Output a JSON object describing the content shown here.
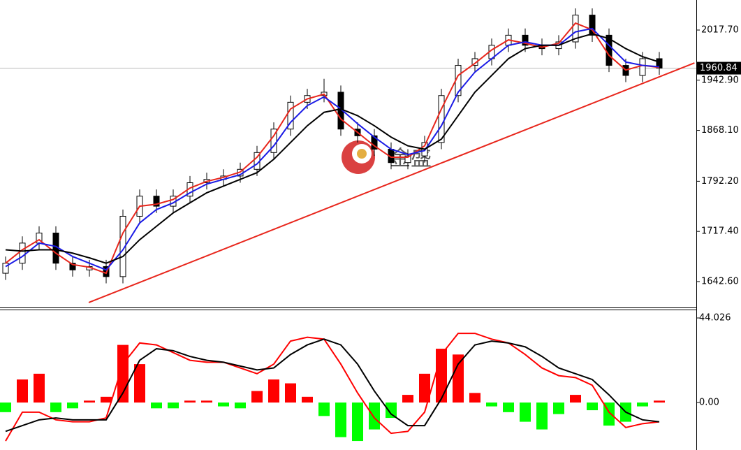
{
  "chart_data": [
    {
      "type": "candlestick",
      "open": [
        1655,
        1670,
        1700,
        1715,
        1670,
        1660,
        1665,
        1650,
        1740,
        1770,
        1755,
        1770,
        1790,
        1795,
        1800,
        1810,
        1835,
        1870,
        1910,
        1920,
        1925,
        1870,
        1860,
        1840,
        1820,
        1830,
        1850,
        1920,
        1965,
        1975,
        1995,
        2010,
        1995,
        1990,
        2000,
        2040,
        2010,
        1965,
        1950,
        1975
      ],
      "high": [
        1680,
        1710,
        1725,
        1725,
        1680,
        1675,
        1675,
        1750,
        1780,
        1780,
        1780,
        1800,
        1805,
        1810,
        1820,
        1845,
        1880,
        1920,
        1930,
        1945,
        1935,
        1880,
        1870,
        1850,
        1840,
        1860,
        1930,
        1975,
        1985,
        2005,
        2020,
        2020,
        2005,
        2010,
        2050,
        2050,
        2020,
        1975,
        1985,
        1985
      ],
      "low": [
        1645,
        1660,
        1690,
        1660,
        1650,
        1650,
        1640,
        1640,
        1730,
        1745,
        1745,
        1760,
        1780,
        1785,
        1790,
        1800,
        1825,
        1860,
        1900,
        1910,
        1860,
        1850,
        1830,
        1810,
        1810,
        1820,
        1840,
        1910,
        1955,
        1965,
        1985,
        1985,
        1980,
        1980,
        1990,
        2000,
        1955,
        1940,
        1940,
        1951
      ],
      "close": [
        1670,
        1700,
        1715,
        1670,
        1660,
        1665,
        1650,
        1740,
        1770,
        1755,
        1770,
        1790,
        1795,
        1800,
        1810,
        1835,
        1870,
        1910,
        1920,
        1925,
        1870,
        1860,
        1840,
        1820,
        1830,
        1850,
        1920,
        1965,
        1975,
        1995,
        2010,
        1995,
        1990,
        2000,
        2040,
        2010,
        1965,
        1950,
        1975,
        1960.84
      ],
      "series": [
        {
          "color": "#e8261c",
          "values": [
            1670,
            1690,
            1705,
            1685,
            1668,
            1664,
            1655,
            1715,
            1755,
            1758,
            1765,
            1782,
            1792,
            1798,
            1806,
            1828,
            1860,
            1900,
            1915,
            1922,
            1885,
            1865,
            1845,
            1828,
            1828,
            1845,
            1900,
            1950,
            1968,
            1988,
            2003,
            1998,
            1992,
            1998,
            2028,
            2018,
            1980,
            1958,
            1965,
            1962
          ]
        },
        {
          "color": "#1a1ae6",
          "values": [
            1665,
            1680,
            1700,
            1695,
            1680,
            1670,
            1660,
            1690,
            1730,
            1750,
            1760,
            1775,
            1788,
            1795,
            1802,
            1818,
            1845,
            1880,
            1905,
            1918,
            1900,
            1878,
            1858,
            1840,
            1832,
            1838,
            1875,
            1925,
            1955,
            1975,
            1995,
            2000,
            1995,
            1995,
            2015,
            2020,
            1995,
            1970,
            1965,
            1963
          ]
        },
        {
          "color": "#000000",
          "values": [
            1690,
            1688,
            1690,
            1690,
            1685,
            1678,
            1670,
            1680,
            1705,
            1725,
            1745,
            1760,
            1775,
            1785,
            1795,
            1805,
            1825,
            1850,
            1875,
            1895,
            1900,
            1890,
            1875,
            1858,
            1845,
            1840,
            1855,
            1890,
            1925,
            1950,
            1975,
            1990,
            1995,
            1995,
            2005,
            2012,
            2005,
            1990,
            1978,
            1970
          ]
        }
      ],
      "ylim": [
        1604.0,
        2062.5
      ],
      "yticks": [
        {
          "value": 1642.6,
          "label": "1642.60"
        },
        {
          "value": 1717.4,
          "label": "1717.40"
        },
        {
          "value": 1792.2,
          "label": "1792.20"
        },
        {
          "value": 1868.1,
          "label": "1868.10"
        },
        {
          "value": 1942.9,
          "label": "1942.90"
        },
        {
          "value": 2017.7,
          "label": "2017.70"
        }
      ],
      "current_price": 1960.84,
      "trendline": {
        "start": [
          4.96,
          1611.3
        ],
        "end": [
          41.1,
          1968.7
        ],
        "color": "#e8261c"
      },
      "watermark": "金盛"
    },
    {
      "type": "macd",
      "histogram": {
        "values": [
          -5,
          12,
          15,
          -5,
          -3,
          1,
          3,
          30,
          20,
          -3,
          -3,
          1,
          1,
          -2,
          -3,
          6,
          12,
          10,
          3,
          -7,
          -18,
          -20,
          -14,
          -8,
          4,
          15,
          28,
          25,
          5,
          -2,
          -5,
          -10,
          -14,
          -6,
          4,
          -4,
          -12,
          -10,
          -2,
          1
        ],
        "up_color": "#ff0000",
        "down_color": "#00ff00"
      },
      "series": [
        {
          "color": "#ff0000",
          "values": [
            -20,
            -5,
            -5,
            -9,
            -10,
            -10,
            -8,
            20,
            31,
            30,
            26,
            22,
            21,
            21,
            18,
            15,
            20,
            32,
            34,
            33,
            20,
            5,
            -8,
            -16,
            -15,
            -5,
            25,
            36,
            36,
            33,
            31,
            25,
            18,
            14,
            13,
            9,
            -5,
            -13,
            -11,
            -10
          ]
        },
        {
          "color": "#000000",
          "values": [
            -15,
            -12,
            -9,
            -8,
            -9,
            -9,
            -9,
            5,
            22,
            28,
            27,
            24,
            22,
            21,
            19,
            17,
            18,
            25,
            30,
            33,
            30,
            20,
            6,
            -6,
            -12,
            -12,
            2,
            20,
            30,
            32,
            31,
            29,
            24,
            18,
            15,
            12,
            4,
            -5,
            -9,
            -10
          ]
        }
      ],
      "ylim": [
        -24.7,
        48.4
      ],
      "yticks": [
        {
          "value": 0,
          "label": "0.00"
        },
        44.026
      ]
    }
  ]
}
